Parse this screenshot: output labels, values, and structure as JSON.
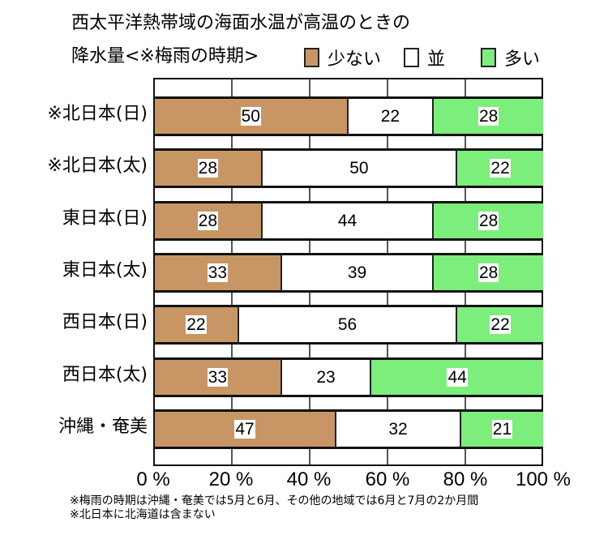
{
  "chart_data": {
    "type": "bar",
    "orientation": "horizontal",
    "stacked": true,
    "percent": true,
    "title": "西太平洋熱帯域の海面水温が高温のときの降水量<※梅雨の時期>",
    "title_lines": [
      "西太平洋熱帯域の海面水温が高温のときの",
      "降水量<※梅雨の時期>"
    ],
    "categories": [
      "※北日本(日)",
      "※北日本(太)",
      "東日本(日)",
      "東日本(太)",
      "西日本(日)",
      "西日本(太)",
      "沖縄・奄美"
    ],
    "series": [
      {
        "name": "少ない",
        "color": "#C89664",
        "values": [
          50,
          28,
          28,
          33,
          22,
          33,
          47
        ]
      },
      {
        "name": "並",
        "color": "#FFFFFF",
        "values": [
          22,
          50,
          44,
          39,
          56,
          23,
          32
        ]
      },
      {
        "name": "多い",
        "color": "#7CEE7C",
        "values": [
          28,
          22,
          28,
          28,
          22,
          44,
          21
        ]
      }
    ],
    "xlim": [
      0,
      100
    ],
    "xticks": [
      "0 %",
      "20 %",
      "40 %",
      "60 %",
      "80 %",
      "100 %"
    ],
    "xlabel": "",
    "ylabel": "",
    "grid": true,
    "legend_position": "top-right",
    "notes": [
      "※梅雨の時期は沖縄・奄美では5月と6月、その他の地域では6月と7月の2か月間",
      "※北日本に北海道は含まない"
    ]
  }
}
